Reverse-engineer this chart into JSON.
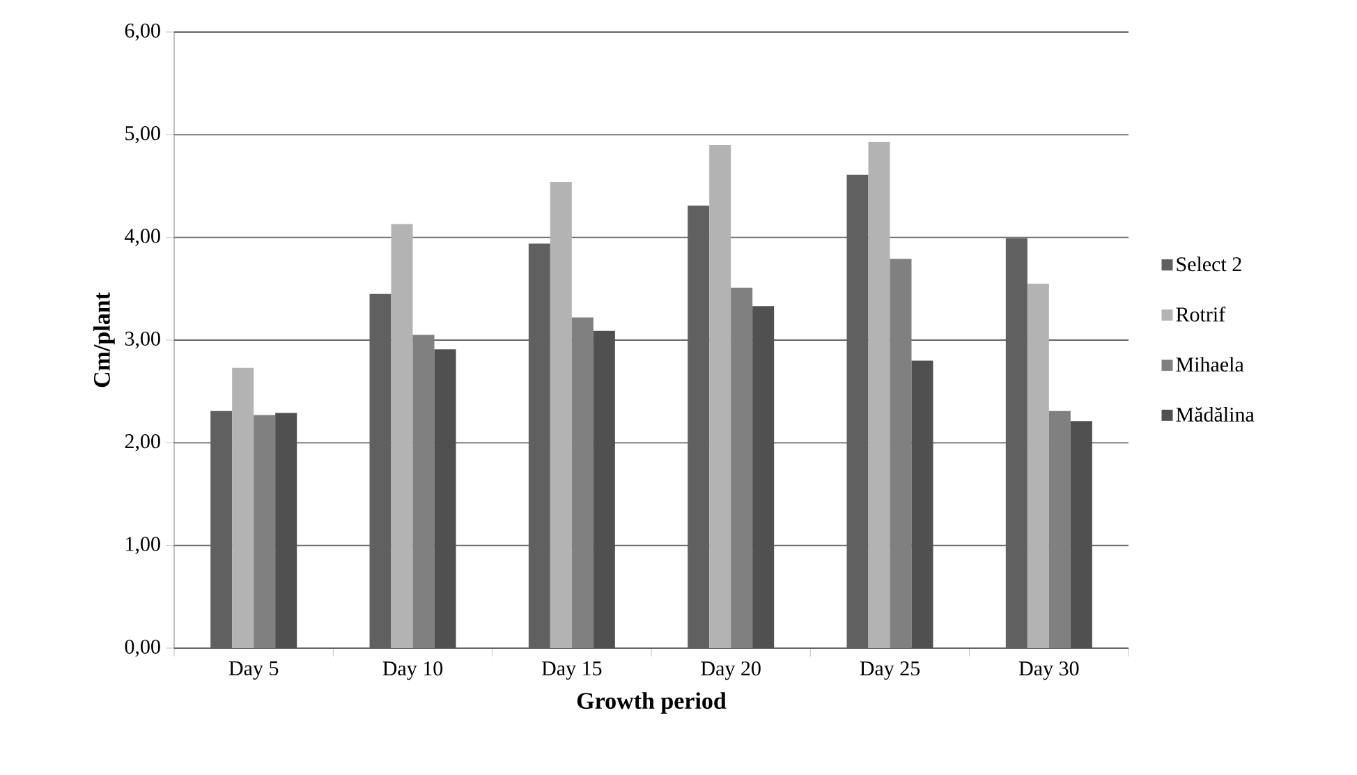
{
  "chart_data": {
    "type": "bar",
    "xlabel": "Growth period",
    "ylabel": "Cm/plant",
    "categories": [
      "Day 5",
      "Day 10",
      "Day 15",
      "Day 20",
      "Day 25",
      "Day 30"
    ],
    "series": [
      {
        "name": "Select 2",
        "color": "#606060",
        "values": [
          2.31,
          3.45,
          3.94,
          4.31,
          4.61,
          3.99
        ]
      },
      {
        "name": "Rotrif",
        "color": "#b3b3b3",
        "values": [
          2.73,
          4.13,
          4.54,
          4.9,
          4.93,
          3.55
        ]
      },
      {
        "name": "Mihaela",
        "color": "#808080",
        "values": [
          2.27,
          3.05,
          3.22,
          3.51,
          3.79,
          2.31
        ]
      },
      {
        "name": "Mădălina",
        "color": "#505050",
        "values": [
          2.29,
          2.91,
          3.09,
          3.33,
          2.8,
          2.21
        ]
      }
    ],
    "ylim": [
      0,
      6
    ],
    "yticks": [
      {
        "value": 0,
        "label": "0,00"
      },
      {
        "value": 1,
        "label": "1,00"
      },
      {
        "value": 2,
        "label": "2,00"
      },
      {
        "value": 3,
        "label": "3,00"
      },
      {
        "value": 4,
        "label": "4,00"
      },
      {
        "value": 5,
        "label": "5,00"
      },
      {
        "value": 6,
        "label": "6,00"
      }
    ],
    "grid": "y",
    "legend": "right"
  }
}
